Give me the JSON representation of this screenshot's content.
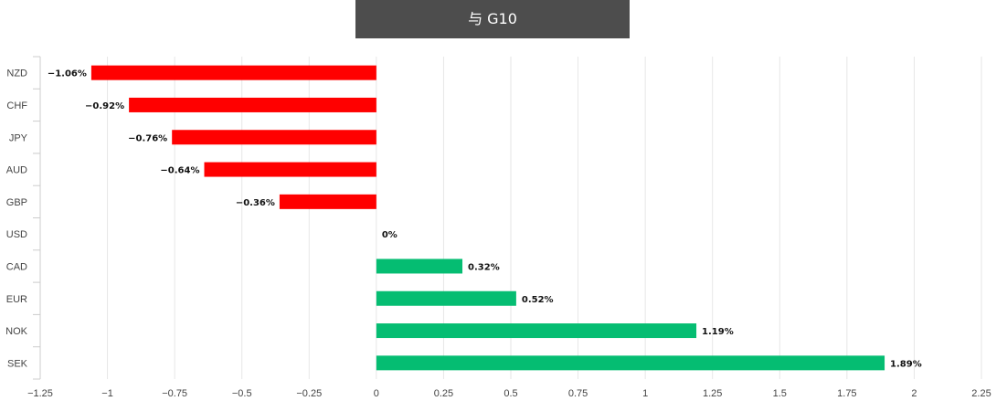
{
  "title": "与 G10",
  "chart_data": {
    "type": "bar",
    "orientation": "horizontal",
    "title": "与 G10",
    "xlabel": "",
    "ylabel": "",
    "categories": [
      "NZD",
      "CHF",
      "JPY",
      "AUD",
      "GBP",
      "USD",
      "CAD",
      "EUR",
      "NOK",
      "SEK"
    ],
    "values": [
      -1.06,
      -0.92,
      -0.76,
      -0.64,
      -0.36,
      0,
      0.32,
      0.52,
      1.19,
      1.89
    ],
    "data_labels": [
      "−1.06%",
      "−0.92%",
      "−0.76%",
      "−0.64%",
      "−0.36%",
      "0%",
      "0.32%",
      "0.52%",
      "1.19%",
      "1.89%"
    ],
    "xlim": [
      -1.25,
      2.25
    ],
    "xticks": [
      -1.25,
      -1,
      -0.75,
      -0.5,
      -0.25,
      0,
      0.25,
      0.5,
      0.75,
      1,
      1.25,
      1.5,
      1.75,
      2,
      2.25
    ],
    "xtick_labels": [
      "−1.25",
      "−1",
      "−0.75",
      "−0.5",
      "−0.25",
      "0",
      "0.25",
      "0.5",
      "0.75",
      "1",
      "1.25",
      "1.5",
      "1.75",
      "2",
      "2.25"
    ],
    "grid": true,
    "legend": "none",
    "colors": {
      "negative": "#ff0000",
      "positive": "#05bd72",
      "grid": "#e6e6e6",
      "title_bg": "#4d4d4d"
    }
  }
}
